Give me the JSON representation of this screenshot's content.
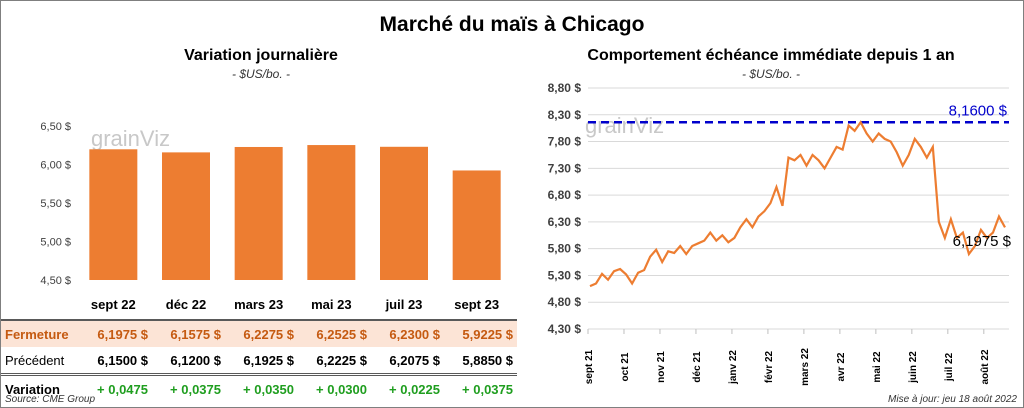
{
  "title": "Marché du maïs à Chicago",
  "left": {
    "title": "Variation journalière",
    "unit": "- $US/bo. -"
  },
  "right": {
    "title": "Comportement échéance immédiate depuis 1 an",
    "unit": "- $US/bo. -"
  },
  "watermark": "grainViz",
  "table": {
    "rows": [
      {
        "label": "Fermeture",
        "values": [
          "6,1975  $",
          "6,1575  $",
          "6,2275  $",
          "6,2525  $",
          "6,2300  $",
          "5,9225  $"
        ]
      },
      {
        "label": "Précédent",
        "values": [
          "6,1500  $",
          "6,1200  $",
          "6,1925  $",
          "6,2225  $",
          "6,2075  $",
          "5,8850  $"
        ]
      },
      {
        "label": "Variation",
        "values": [
          "+ 0,0475",
          "+ 0,0375",
          "+ 0,0350",
          "+ 0,0300",
          "+ 0,0225",
          "+ 0,0375"
        ]
      }
    ]
  },
  "source": "Source: CME Group",
  "updated": "Mise à jour: jeu 18 août 2022",
  "chart_data": [
    {
      "type": "bar",
      "title": "Variation journalière",
      "ylabel": "$US/bo.",
      "categories": [
        "sept 22",
        "déc 22",
        "mars 23",
        "mai 23",
        "juil 23",
        "sept 23"
      ],
      "values": [
        6.1975,
        6.1575,
        6.2275,
        6.2525,
        6.23,
        5.9225
      ],
      "ylim": [
        4.5,
        6.5
      ],
      "yticks": [
        "4,50 $",
        "5,00 $",
        "5,50 $",
        "6,00 $",
        "6,50 $"
      ],
      "color": "#ed7d31"
    },
    {
      "type": "line",
      "title": "Comportement échéance immédiate depuis 1 an",
      "ylabel": "$US/bo.",
      "ylim": [
        4.3,
        8.8
      ],
      "yticks": [
        "4,30 $",
        "4,80 $",
        "5,30 $",
        "5,80 $",
        "6,30 $",
        "6,80 $",
        "7,30 $",
        "7,80 $",
        "8,30 $",
        "8,80 $"
      ],
      "xticks": [
        "sept 21",
        "oct 21",
        "nov 21",
        "déc 21",
        "janv 22",
        "févr 22",
        "mars 22",
        "avr 22",
        "mai 22",
        "juin 22",
        "juil 22",
        "août 22"
      ],
      "values": [
        5.1,
        5.15,
        5.33,
        5.22,
        5.38,
        5.42,
        5.32,
        5.15,
        5.35,
        5.4,
        5.65,
        5.78,
        5.55,
        5.75,
        5.72,
        5.85,
        5.7,
        5.85,
        5.9,
        5.95,
        6.1,
        5.95,
        6.05,
        5.92,
        6.0,
        6.2,
        6.35,
        6.2,
        6.4,
        6.5,
        6.65,
        6.95,
        6.6,
        7.5,
        7.45,
        7.55,
        7.35,
        7.55,
        7.45,
        7.3,
        7.5,
        7.7,
        7.65,
        8.1,
        8.0,
        8.16,
        7.95,
        7.8,
        7.95,
        7.85,
        7.8,
        7.6,
        7.35,
        7.55,
        7.85,
        7.7,
        7.5,
        7.7,
        6.3,
        6.0,
        6.35,
        6.0,
        6.1,
        5.7,
        5.85,
        6.15,
        6.0,
        6.1,
        6.4,
        6.1975
      ],
      "max_line": {
        "value": 8.16,
        "label": "8,1600 $",
        "color": "#0000cc"
      },
      "last_label": "6,1975 $",
      "color": "#ed7d31"
    }
  ]
}
